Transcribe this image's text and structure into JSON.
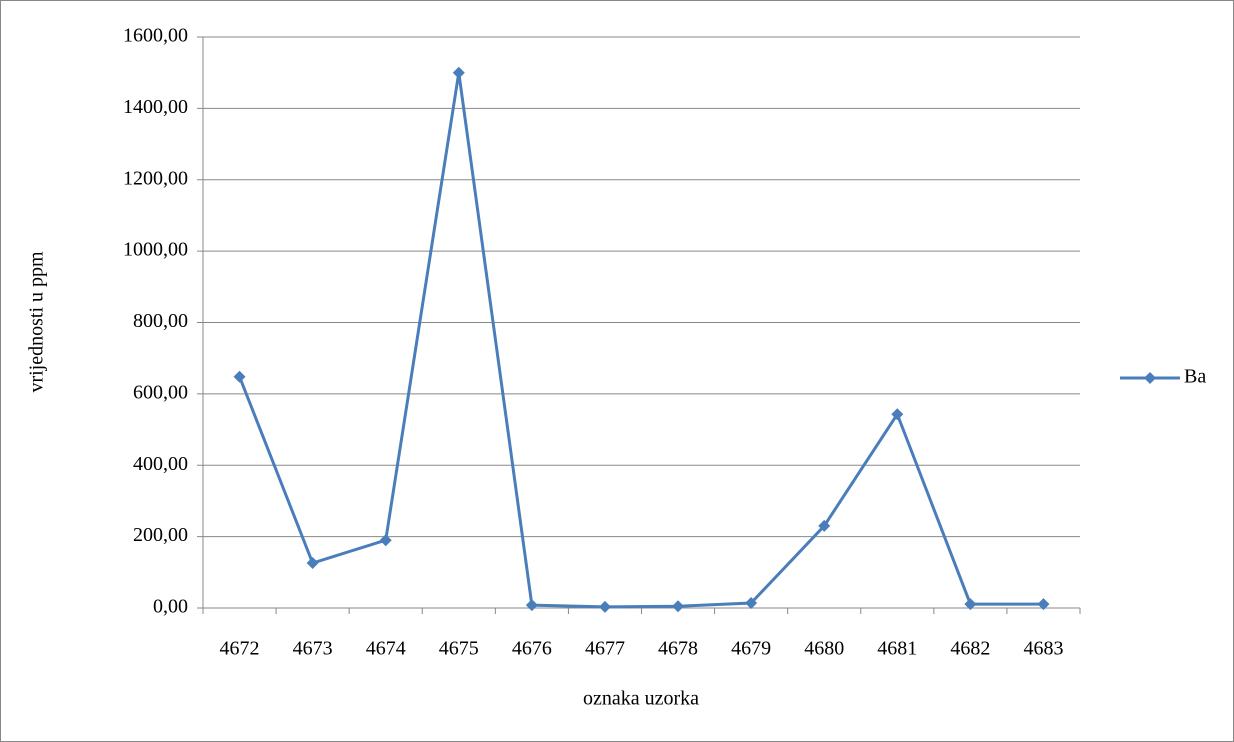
{
  "chart_data": {
    "type": "line",
    "x_label": "oznaka uzorka",
    "y_label": "vrijednosti u ppm",
    "categories": [
      "4672",
      "4673",
      "4674",
      "4675",
      "4676",
      "4677",
      "4678",
      "4679",
      "4680",
      "4681",
      "4682",
      "4683"
    ],
    "series": [
      {
        "name": "Ba",
        "color": "#4a7ebb",
        "values": [
          648,
          126,
          190,
          1500,
          8,
          3,
          5,
          14,
          230,
          543,
          11,
          11
        ]
      }
    ],
    "ylim": [
      0,
      1600
    ],
    "yticks": [
      {
        "value": 0,
        "label": "0,00"
      },
      {
        "value": 200,
        "label": "200,00"
      },
      {
        "value": 400,
        "label": "400,00"
      },
      {
        "value": 600,
        "label": "600,00"
      },
      {
        "value": 800,
        "label": "800,00"
      },
      {
        "value": 1000,
        "label": "1000,00"
      },
      {
        "value": 1200,
        "label": "1200,00"
      },
      {
        "value": 1400,
        "label": "1400,00"
      },
      {
        "value": 1600,
        "label": "1600,00"
      }
    ],
    "grid": true,
    "legend": "right"
  }
}
